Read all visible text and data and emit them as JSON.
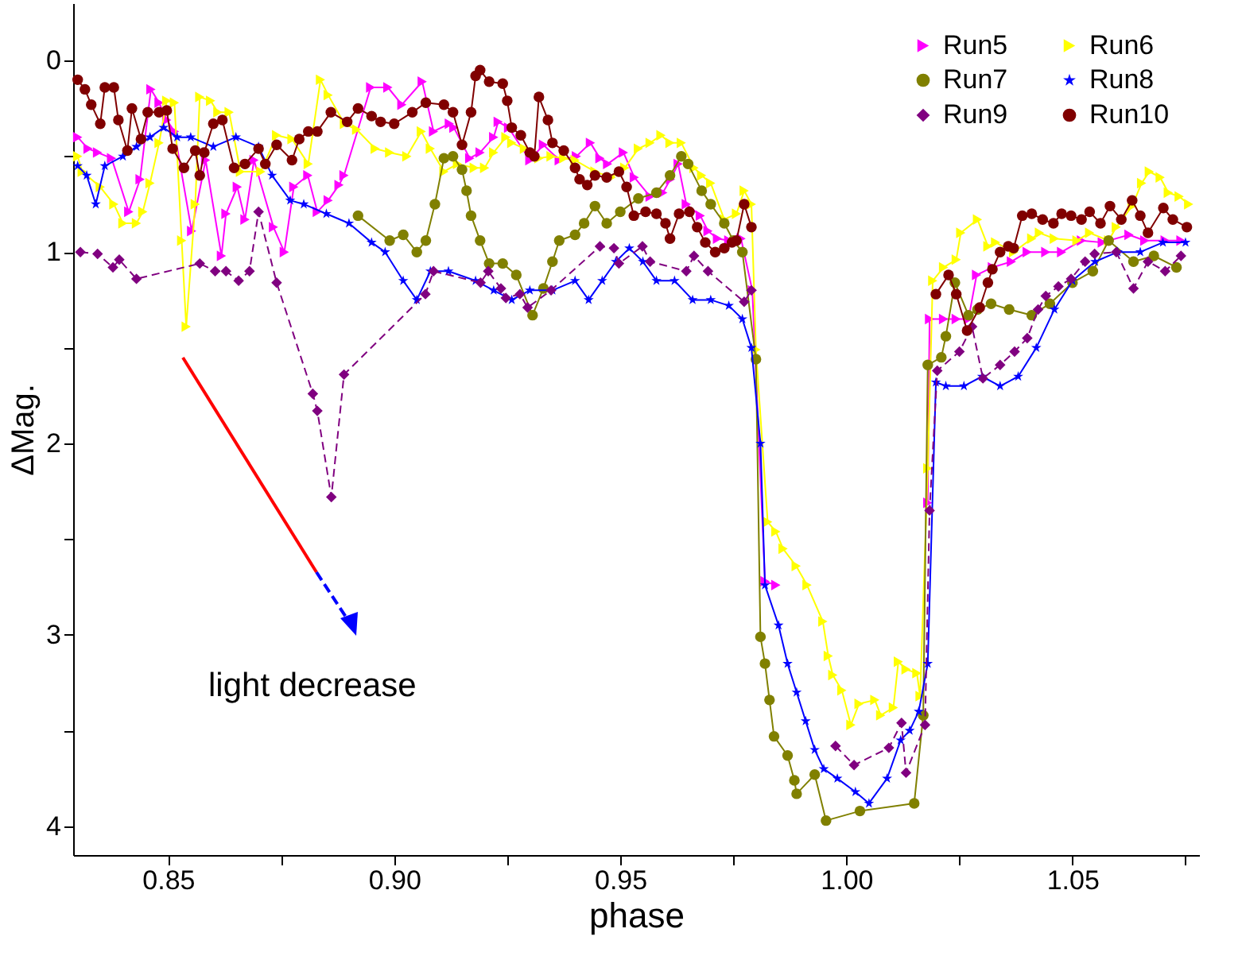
{
  "chart_data": {
    "type": "line",
    "xlabel": "phase",
    "ylabel": "ΔMag.",
    "xlim": [
      0.829,
      1.078
    ],
    "ylim": [
      4.15,
      -0.3
    ],
    "xticks": [
      0.85,
      {
        "value": 0.875,
        "label": null
      },
      {
        "value": 0.9,
        "label": "0.90"
      },
      {
        "value": 0.925,
        "label": null
      },
      0.95,
      {
        "value": 0.975,
        "label": null
      },
      {
        "value": 1,
        "label": "1.00"
      },
      {
        "value": 1.025,
        "label": null
      },
      1.05,
      {
        "value": 1.075,
        "label": null
      }
    ],
    "yticks": [
      0,
      {
        "value": 0.5,
        "label": null
      },
      1,
      {
        "value": 1.5,
        "label": null
      },
      2,
      {
        "value": 2.5,
        "label": null
      },
      3,
      {
        "value": 3.5,
        "label": null
      },
      4
    ],
    "legend": "top right",
    "annotations": [
      "light decrease"
    ],
    "series": [
      {
        "name": "Run5",
        "color": "#ff00ff",
        "marker": "triangle",
        "x": [
          0.83,
          0.8323,
          0.8344,
          0.8375,
          0.8413,
          0.8438,
          0.8462,
          0.848,
          0.8497,
          0.8514,
          0.8552,
          0.8583,
          0.8618,
          0.8628,
          0.8653,
          0.867,
          0.869,
          0.8733,
          0.8757,
          0.8778,
          0.8809,
          0.883,
          0.8854,
          0.8878,
          0.8889,
          0.8948,
          0.8986,
          0.9017,
          0.9062,
          0.9087,
          0.9122,
          0.9132,
          0.9167,
          0.919,
          0.922,
          0.923,
          0.9253,
          0.93,
          0.933,
          0.9365,
          0.9403,
          0.9434,
          0.9455,
          0.9472,
          0.9507,
          0.9531,
          0.9566,
          0.9594,
          0.9611,
          0.9628,
          0.9646,
          0.9677,
          0.9694,
          0.9715,
          0.974,
          0.9767,
          0.9792,
          0.982,
          0.9844,
          0.999,
          1.018,
          1.0184,
          1.0215,
          1.0243,
          1.027,
          1.0288,
          1.0323,
          1.0365,
          1.04,
          1.0441,
          1.0476,
          1.052,
          1.0566,
          1.0625,
          1.066,
          1.0705,
          1.074
        ],
        "values": [
          0.4,
          0.46,
          0.48,
          0.51,
          0.79,
          0.62,
          0.15,
          0.22,
          0.31,
          0.37,
          0.89,
          0.52,
          1.02,
          0.8,
          0.66,
          0.83,
          0.52,
          0.87,
          1.0,
          0.66,
          0.6,
          0.79,
          0.73,
          0.65,
          0.6,
          0.14,
          0.14,
          0.23,
          0.11,
          0.37,
          0.33,
          0.35,
          0.51,
          0.48,
          0.4,
          0.32,
          0.35,
          0.52,
          0.44,
          0.52,
          0.5,
          0.43,
          0.51,
          0.54,
          0.48,
          0.61,
          0.71,
          0.69,
          0.62,
          0.54,
          0.75,
          0.81,
          0.89,
          0.93,
          0.94,
          0.93,
          1.2,
          2.72,
          2.74,
          null,
          2.31,
          1.35,
          1.35,
          1.35,
          1.35,
          1.12,
          1.08,
          1.05,
          1.0,
          1.0,
          1.0,
          0.94,
          0.95,
          0.91,
          0.94,
          0.94,
          0.94
        ]
      },
      {
        "name": "Run6",
        "color": "#ffff00",
        "marker": "triangle",
        "x": [
          0.83,
          0.831,
          0.835,
          0.838,
          0.84,
          0.843,
          0.8444,
          0.846,
          0.848,
          0.8497,
          0.8514,
          0.853,
          0.854,
          0.856,
          0.857,
          0.8594,
          0.861,
          0.8635,
          0.866,
          0.8705,
          0.874,
          0.8774,
          0.881,
          0.8837,
          0.8854,
          0.889,
          0.8917,
          0.8958,
          0.899,
          0.9028,
          0.906,
          0.908,
          0.911,
          0.914,
          0.9177,
          0.92,
          0.922,
          0.9247,
          0.926,
          0.9288,
          0.932,
          0.9347,
          0.9375,
          0.94,
          0.9444,
          0.948,
          0.951,
          0.954,
          0.9566,
          0.959,
          0.961,
          0.9635,
          0.9663,
          0.968,
          0.97,
          0.973,
          0.9757,
          0.9774,
          0.979,
          0.98,
          0.9826,
          0.9844,
          0.986,
          0.9889,
          0.9913,
          0.9948,
          0.996,
          0.997,
          0.999,
          1.001,
          1.0028,
          1.0063,
          1.0076,
          1.0104,
          1.0115,
          1.0132,
          1.0156,
          1.0163,
          1.018,
          1.0191,
          1.0215,
          1.0243,
          1.0253,
          1.029,
          1.0313,
          1.033,
          1.037,
          1.041,
          1.0427,
          1.046,
          1.051,
          1.0538,
          1.058,
          1.0597,
          1.0632,
          1.0653,
          1.067,
          1.0694,
          1.0712,
          1.0736,
          1.0757
        ],
        "values": [
          0.5,
          0.58,
          0.66,
          0.75,
          0.85,
          0.85,
          0.79,
          0.64,
          0.43,
          0.21,
          0.22,
          0.94,
          1.39,
          0.75,
          0.19,
          0.21,
          0.27,
          0.27,
          0.58,
          0.58,
          0.39,
          0.41,
          0.54,
          0.1,
          0.18,
          0.33,
          0.36,
          0.46,
          0.48,
          0.5,
          0.37,
          0.46,
          0.58,
          0.54,
          0.56,
          0.56,
          0.48,
          0.4,
          0.43,
          0.46,
          0.51,
          0.5,
          0.51,
          0.52,
          0.58,
          0.61,
          0.56,
          0.46,
          0.43,
          0.39,
          0.43,
          0.43,
          0.56,
          0.6,
          0.64,
          0.83,
          0.8,
          0.68,
          0.75,
          1.51,
          2.41,
          2.46,
          2.55,
          2.64,
          2.74,
          2.93,
          3.11,
          3.21,
          3.29,
          3.47,
          3.36,
          3.34,
          3.42,
          3.38,
          3.14,
          3.18,
          3.2,
          3.32,
          2.13,
          1.15,
          1.08,
          1.04,
          0.9,
          0.83,
          0.97,
          0.95,
          1.0,
          0.93,
          0.9,
          0.93,
          0.94,
          0.9,
          0.94,
          0.87,
          0.76,
          0.64,
          0.58,
          0.61,
          0.69,
          0.71,
          0.75
        ]
      },
      {
        "name": "Run7",
        "color": "#808000",
        "marker": "circle",
        "x": [
          0.892,
          0.899,
          0.902,
          0.905,
          0.907,
          0.909,
          0.911,
          0.913,
          0.915,
          0.916,
          0.917,
          0.919,
          0.921,
          0.924,
          0.927,
          0.9306,
          0.933,
          0.935,
          0.9365,
          0.94,
          0.942,
          0.9444,
          0.947,
          0.95,
          0.954,
          0.958,
          0.961,
          0.9635,
          0.965,
          0.968,
          0.97,
          0.973,
          0.975,
          0.977,
          0.98,
          0.981,
          0.982,
          0.983,
          0.984,
          0.987,
          0.9885,
          0.989,
          0.993,
          0.9955,
          1.003,
          1.015,
          1.017,
          1.018,
          1.021,
          1.022,
          1.024,
          1.027,
          1.029,
          1.032,
          1.036,
          1.041,
          1.045,
          1.05,
          1.0545,
          1.058,
          1.0635,
          1.068,
          1.073
        ],
        "values": [
          0.81,
          0.94,
          0.91,
          1.0,
          0.94,
          0.75,
          0.51,
          0.5,
          0.57,
          0.68,
          0.81,
          0.94,
          1.06,
          1.06,
          1.12,
          1.33,
          1.19,
          1.05,
          0.94,
          0.91,
          0.85,
          0.76,
          0.85,
          0.79,
          0.72,
          0.69,
          0.6,
          0.5,
          0.54,
          0.68,
          0.75,
          0.85,
          0.94,
          1.0,
          1.56,
          3.01,
          3.15,
          3.34,
          3.53,
          3.63,
          3.76,
          3.83,
          3.73,
          3.97,
          3.92,
          3.88,
          3.42,
          1.59,
          1.55,
          1.44,
          1.16,
          1.33,
          1.3,
          1.27,
          1.3,
          1.33,
          1.27,
          1.16,
          1.1,
          0.94,
          1.05,
          1.02,
          1.08
        ]
      },
      {
        "name": "Run8",
        "color": "#0000ff",
        "marker": "star",
        "x": [
          0.83,
          0.832,
          0.834,
          0.836,
          0.84,
          0.843,
          0.846,
          0.849,
          0.852,
          0.855,
          0.86,
          0.865,
          0.87,
          0.873,
          0.877,
          0.88,
          0.885,
          0.89,
          0.895,
          0.898,
          0.902,
          0.905,
          0.908,
          0.912,
          0.918,
          0.922,
          0.926,
          0.93,
          0.935,
          0.94,
          0.943,
          0.946,
          0.949,
          0.952,
          0.955,
          0.958,
          0.962,
          0.966,
          0.97,
          0.974,
          0.977,
          0.979,
          0.981,
          0.982,
          0.985,
          0.987,
          0.989,
          0.991,
          0.993,
          0.995,
          0.998,
          1.002,
          1.005,
          1.009,
          1.012,
          1.014,
          1.016,
          1.018,
          1.0198,
          1.022,
          1.026,
          1.03,
          1.034,
          1.038,
          1.042,
          1.046,
          1.05,
          1.055,
          1.06,
          1.065,
          1.07,
          1.075
        ],
        "values": [
          0.55,
          0.6,
          0.75,
          0.55,
          0.5,
          0.45,
          0.4,
          0.35,
          0.4,
          0.4,
          0.45,
          0.4,
          0.45,
          0.6,
          0.73,
          0.75,
          0.8,
          0.85,
          0.95,
          1.0,
          1.15,
          1.25,
          1.1,
          1.1,
          1.15,
          1.2,
          1.25,
          1.2,
          1.2,
          1.15,
          1.25,
          1.15,
          1.05,
          0.98,
          1.05,
          1.15,
          1.15,
          1.25,
          1.25,
          1.28,
          1.35,
          1.5,
          2.0,
          2.74,
          2.95,
          3.15,
          3.3,
          3.45,
          3.6,
          3.7,
          3.75,
          3.82,
          3.88,
          3.75,
          3.55,
          3.5,
          3.4,
          3.15,
          1.68,
          1.7,
          1.7,
          1.65,
          1.7,
          1.65,
          1.5,
          1.3,
          1.15,
          1.05,
          1.0,
          1.0,
          0.95,
          0.95
        ]
      },
      {
        "name": "Run9",
        "color": "#800080",
        "marker": "diamond",
        "line_style": "dashed",
        "x": [
          0.8306,
          0.8344,
          0.8378,
          0.8392,
          0.843,
          0.857,
          0.8604,
          0.8628,
          0.8656,
          0.868,
          0.87,
          0.874,
          0.882,
          0.883,
          0.8861,
          0.8889,
          0.9069,
          0.9087,
          0.9191,
          0.9208,
          0.9236,
          0.9247,
          0.9278,
          0.9295,
          0.9347,
          0.9455,
          0.9486,
          0.9497,
          0.9549,
          0.9566,
          0.9646,
          0.9663,
          0.9694,
          0.9774,
          0.979,
          0.99,
          0.9976,
          1.0017,
          1.0094,
          1.0122,
          1.0132,
          1.0174,
          1.0184,
          1.0201,
          1.025,
          1.0278,
          1.0302,
          1.034,
          1.0372,
          1.04,
          1.0424,
          1.0441,
          1.0469,
          1.0497,
          1.0528,
          1.0549,
          1.0597,
          1.0635,
          1.0667,
          1.0705,
          1.074
        ],
        "values": [
          1.0,
          1.01,
          1.08,
          1.04,
          1.14,
          1.06,
          1.1,
          1.1,
          1.15,
          1.1,
          0.79,
          1.16,
          1.74,
          1.83,
          2.28,
          1.64,
          1.22,
          1.1,
          1.16,
          1.1,
          1.19,
          1.24,
          1.22,
          1.29,
          1.2,
          0.97,
          0.98,
          1.06,
          0.97,
          1.05,
          1.1,
          1.02,
          1.1,
          1.26,
          1.2,
          null,
          3.58,
          3.68,
          3.59,
          3.46,
          3.72,
          3.47,
          2.35,
          1.62,
          1.52,
          1.39,
          1.66,
          1.59,
          1.52,
          1.45,
          1.3,
          1.23,
          1.18,
          1.14,
          1.05,
          1.01,
          1.0,
          1.19,
          1.05,
          1.1,
          1.02
        ]
      },
      {
        "name": "Run10",
        "color": "#800000",
        "marker": "circle",
        "x": [
          0.83,
          0.8316,
          0.833,
          0.835,
          0.836,
          0.838,
          0.839,
          0.841,
          0.842,
          0.844,
          0.8455,
          0.848,
          0.8497,
          0.851,
          0.8535,
          0.856,
          0.857,
          0.858,
          0.86,
          0.862,
          0.8646,
          0.867,
          0.87,
          0.8715,
          0.874,
          0.8774,
          0.879,
          0.881,
          0.883,
          0.886,
          0.8896,
          0.892,
          0.895,
          0.897,
          0.9,
          0.904,
          0.907,
          0.911,
          0.913,
          0.915,
          0.917,
          0.918,
          0.919,
          0.921,
          0.924,
          0.925,
          0.926,
          0.928,
          0.93,
          0.931,
          0.932,
          0.934,
          0.935,
          0.9375,
          0.94,
          0.941,
          0.9427,
          0.9444,
          0.947,
          0.9497,
          0.9514,
          0.953,
          0.9556,
          0.958,
          0.96,
          0.961,
          0.963,
          0.9653,
          0.967,
          0.9688,
          0.971,
          0.973,
          0.9747,
          0.9757,
          0.9774,
          0.979,
          1.0,
          1.0198,
          1.0226,
          1.0243,
          1.0267,
          1.0295,
          1.0313,
          1.0323,
          1.034,
          1.0358,
          1.037,
          1.0389,
          1.041,
          1.0434,
          1.0458,
          1.0476,
          1.0497,
          1.052,
          1.0538,
          1.0562,
          1.0583,
          1.0608,
          1.0632,
          1.065,
          1.0667,
          1.0701,
          1.0722,
          1.0753
        ],
        "values": [
          0.1,
          0.15,
          0.23,
          0.33,
          0.14,
          0.14,
          0.31,
          0.47,
          0.25,
          0.41,
          0.27,
          0.27,
          0.26,
          0.46,
          0.56,
          0.47,
          0.6,
          0.48,
          0.33,
          0.31,
          0.56,
          0.54,
          0.46,
          0.54,
          0.44,
          0.52,
          0.41,
          0.37,
          0.37,
          0.27,
          0.32,
          0.25,
          0.29,
          0.32,
          0.33,
          0.27,
          0.22,
          0.23,
          0.27,
          0.44,
          0.27,
          0.08,
          0.05,
          0.11,
          0.12,
          0.21,
          0.35,
          0.39,
          0.48,
          0.5,
          0.19,
          0.31,
          0.43,
          0.47,
          0.56,
          0.62,
          0.65,
          0.6,
          0.61,
          0.58,
          0.66,
          0.81,
          0.79,
          0.8,
          0.85,
          0.93,
          0.8,
          0.79,
          0.87,
          0.95,
          1.0,
          0.98,
          0.95,
          0.94,
          0.75,
          0.87,
          null,
          1.22,
          1.12,
          1.22,
          1.41,
          1.29,
          1.16,
          1.09,
          1.0,
          0.97,
          0.98,
          0.81,
          0.8,
          0.83,
          0.85,
          0.8,
          0.81,
          0.83,
          0.79,
          0.85,
          0.76,
          0.83,
          0.73,
          0.81,
          0.9,
          0.77,
          0.83,
          0.87
        ]
      }
    ]
  }
}
